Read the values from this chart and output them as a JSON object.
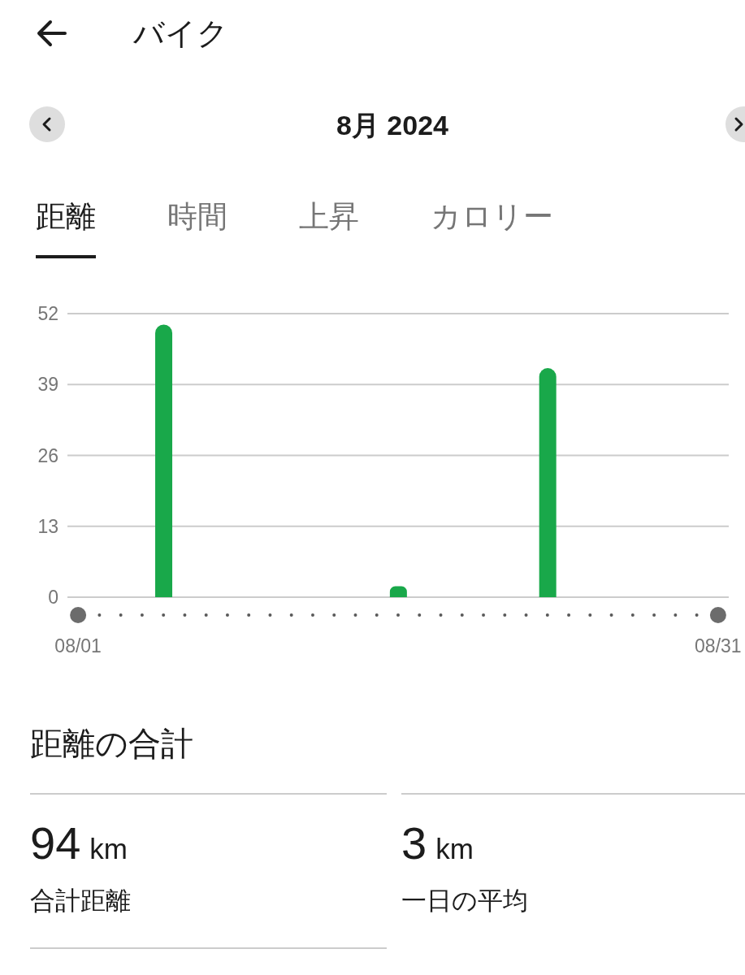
{
  "chart_data": {
    "type": "bar",
    "title": "バイク",
    "subtitle": "8月 2024",
    "categories": [
      "08/01",
      null,
      null,
      null,
      null,
      null,
      null,
      null,
      null,
      null,
      null,
      null,
      null,
      null,
      null,
      null,
      null,
      null,
      null,
      null,
      null,
      null,
      null,
      null,
      null,
      null,
      null,
      null,
      null,
      null,
      "08/31"
    ],
    "values": [
      null,
      null,
      null,
      null,
      50,
      null,
      null,
      null,
      null,
      null,
      null,
      null,
      null,
      null,
      null,
      2,
      null,
      null,
      null,
      null,
      null,
      null,
      42,
      null,
      null,
      null,
      null,
      null,
      null,
      null,
      null
    ],
    "color": "#19a84a",
    "ylim": [
      0,
      52
    ],
    "yticks": [
      0,
      13,
      26,
      39,
      52
    ],
    "grid": "y",
    "annotations": [
      "距離",
      "時間",
      "上昇",
      "カロリー",
      "距離の合計",
      "94 km",
      "合計距離",
      "3 km",
      "一日の平均"
    ]
  }
}
